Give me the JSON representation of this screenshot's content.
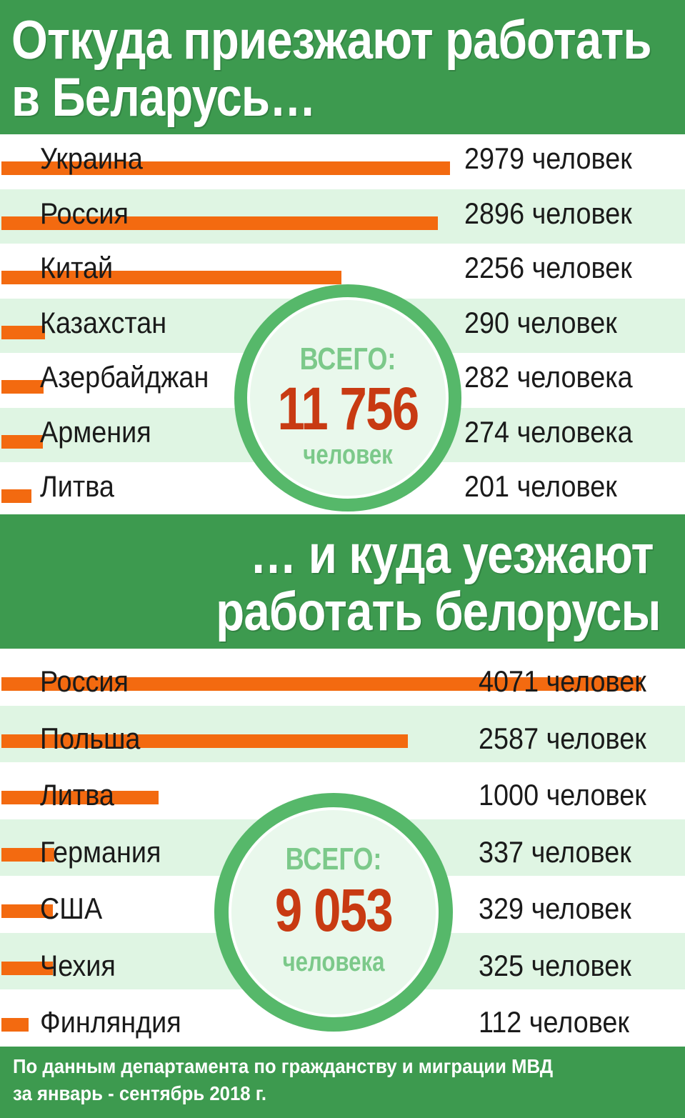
{
  "title_top_line1": "Откуда приезжают работать",
  "title_top_line2": "в Беларусь…",
  "title_bottom_line1": "… и куда уезжают",
  "title_bottom_line2": "работать белорусы",
  "colors": {
    "green": "#3d9a4f",
    "bar": "#f36a10",
    "light_row": "#dff5e3",
    "total": "#c83a12"
  },
  "chart_data": [
    {
      "type": "bar",
      "title": "Откуда приезжают работать в Беларусь…",
      "orientation": "horizontal",
      "categories": [
        "Украина",
        "Россия",
        "Китай",
        "Казахстан",
        "Азербайджан",
        "Армения",
        "Литва"
      ],
      "values": [
        2979,
        2896,
        2256,
        290,
        282,
        274,
        201
      ],
      "value_labels": [
        "2979 человек",
        "2896 человек",
        "2256 человек",
        "290 человек",
        "282 человека",
        "274 человека",
        "201 человек"
      ],
      "xlim": [
        0,
        2979
      ],
      "total": {
        "label": "ВСЕГО:",
        "value": "11 756",
        "unit": "человек"
      }
    },
    {
      "type": "bar",
      "title": "… и куда уезжают работать белорусы",
      "orientation": "horizontal",
      "categories": [
        "Россия",
        "Польша",
        "Литва",
        "Германия",
        "США",
        "Чехия",
        "Финляндия"
      ],
      "values": [
        4071,
        2587,
        1000,
        337,
        329,
        325,
        112
      ],
      "value_labels": [
        "4071 человек",
        "2587 человек",
        "1000 человек",
        "337 человек",
        "329 человек",
        "325 человек",
        "112 человек"
      ],
      "xlim": [
        0,
        4071
      ],
      "total": {
        "label": "ВСЕГО:",
        "value": "9 053",
        "unit": "человека"
      }
    }
  ],
  "footer": {
    "line1": "По данным департамента по гражданству и миграции МВД",
    "line2": "за январь - сентябрь 2018 г."
  }
}
